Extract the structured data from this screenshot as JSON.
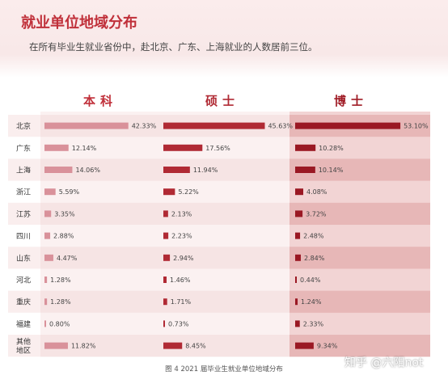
{
  "header": {
    "title": "就业单位地域分布",
    "subtitle": "在所有毕业生就业省份中，赴北京、广东、上海就业的人数居前三位。"
  },
  "caption": "图 4   2021 届毕业生就业单位地域分布",
  "watermark": "知乎 @六阳not",
  "colors": {
    "title": "#c0303a",
    "undergrad_bar": "#d9919a",
    "master_bar": "#b02a34",
    "phd_bar": "#9a1823",
    "row_stripe": "#f6e4e4",
    "phd_stripe": "#e7b7b7"
  },
  "chart_data": {
    "type": "bar",
    "categories": [
      "北京",
      "广东",
      "上海",
      "浙江",
      "江苏",
      "四川",
      "山东",
      "河北",
      "重庆",
      "福建",
      "其他地区"
    ],
    "series": [
      {
        "name": "本科",
        "values": [
          42.33,
          12.14,
          14.06,
          5.59,
          3.35,
          2.88,
          4.47,
          1.28,
          1.28,
          0.8,
          11.82
        ],
        "labels": [
          "42.33%",
          "12.14%",
          "14.06%",
          "5.59%",
          "3.35%",
          "2.88%",
          "4.47%",
          "1.28%",
          "1.28%",
          "0.80%",
          "11.82%"
        ]
      },
      {
        "name": "硕士",
        "values": [
          45.63,
          17.56,
          11.94,
          5.22,
          2.13,
          2.23,
          2.94,
          1.46,
          1.71,
          0.73,
          8.45
        ],
        "labels": [
          "45.63%",
          "17.56%",
          "11.94%",
          "5.22%",
          "2.13%",
          "2.23%",
          "2.94%",
          "1.46%",
          "1.71%",
          "0.73%",
          "8.45%"
        ]
      },
      {
        "name": "博士",
        "values": [
          53.1,
          10.28,
          10.14,
          4.08,
          3.72,
          2.48,
          2.84,
          0.44,
          1.24,
          2.33,
          9.34
        ],
        "labels": [
          "53.10%",
          "10.28%",
          "10.14%",
          "4.08%",
          "3.72%",
          "2.48%",
          "2.84%",
          "0.44%",
          "1.24%",
          "2.33%",
          "9.34%"
        ]
      }
    ],
    "unit": "%"
  }
}
